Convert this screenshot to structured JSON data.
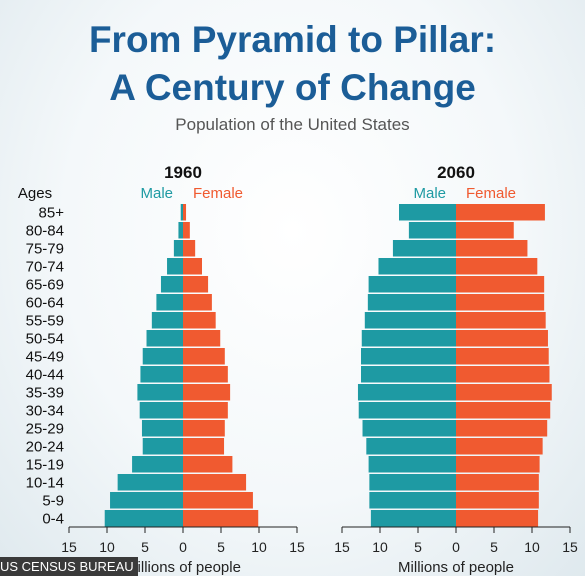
{
  "header": {
    "title_line1": "From Pyramid to Pillar:",
    "title_line2": "A Century of Change",
    "subtitle": "Population of the United States"
  },
  "credit": "US CENSUS BUREAU",
  "chart_data": [
    {
      "type": "bar",
      "title": "1960",
      "ages_label": "Ages",
      "categories": [
        "85+",
        "80-84",
        "75-79",
        "70-74",
        "65-69",
        "60-64",
        "55-59",
        "50-54",
        "45-49",
        "40-44",
        "35-39",
        "30-34",
        "25-29",
        "20-24",
        "15-19",
        "10-14",
        "5-9",
        "0-4"
      ],
      "series": [
        {
          "name": "Male",
          "color": "#1e9aa3",
          "values": [
            0.3,
            0.6,
            1.2,
            2.1,
            2.9,
            3.5,
            4.1,
            4.8,
            5.3,
            5.6,
            6.0,
            5.7,
            5.4,
            5.3,
            6.7,
            8.6,
            9.6,
            10.3
          ]
        },
        {
          "name": "Female",
          "color": "#f05a30",
          "values": [
            0.4,
            0.9,
            1.6,
            2.5,
            3.3,
            3.8,
            4.3,
            4.9,
            5.5,
            5.9,
            6.2,
            5.9,
            5.5,
            5.4,
            6.5,
            8.3,
            9.2,
            9.9
          ]
        }
      ],
      "xlim": [
        -15,
        15
      ],
      "xticks": [
        "15",
        "10",
        "5",
        "0",
        "5",
        "10",
        "15"
      ],
      "xlabel": "Millions of people"
    },
    {
      "type": "bar",
      "title": "2060",
      "categories": [
        "85+",
        "80-84",
        "75-79",
        "70-74",
        "65-69",
        "60-64",
        "55-59",
        "50-54",
        "45-49",
        "40-44",
        "35-39",
        "30-34",
        "25-29",
        "20-24",
        "15-19",
        "10-14",
        "5-9",
        "0-4"
      ],
      "series": [
        {
          "name": "Male",
          "color": "#1e9aa3",
          "values": [
            7.5,
            6.2,
            8.3,
            10.2,
            11.5,
            11.6,
            12.0,
            12.4,
            12.5,
            12.5,
            12.9,
            12.8,
            12.3,
            11.8,
            11.5,
            11.4,
            11.4,
            11.2
          ]
        },
        {
          "name": "Female",
          "color": "#f05a30",
          "values": [
            11.7,
            7.6,
            9.4,
            10.7,
            11.6,
            11.6,
            11.8,
            12.1,
            12.2,
            12.3,
            12.6,
            12.4,
            12.0,
            11.4,
            11.0,
            10.9,
            10.9,
            10.8
          ]
        }
      ],
      "xlim": [
        -15,
        15
      ],
      "xticks": [
        "15",
        "10",
        "5",
        "0",
        "5",
        "10",
        "15"
      ],
      "xlabel": "Millions of people"
    }
  ]
}
